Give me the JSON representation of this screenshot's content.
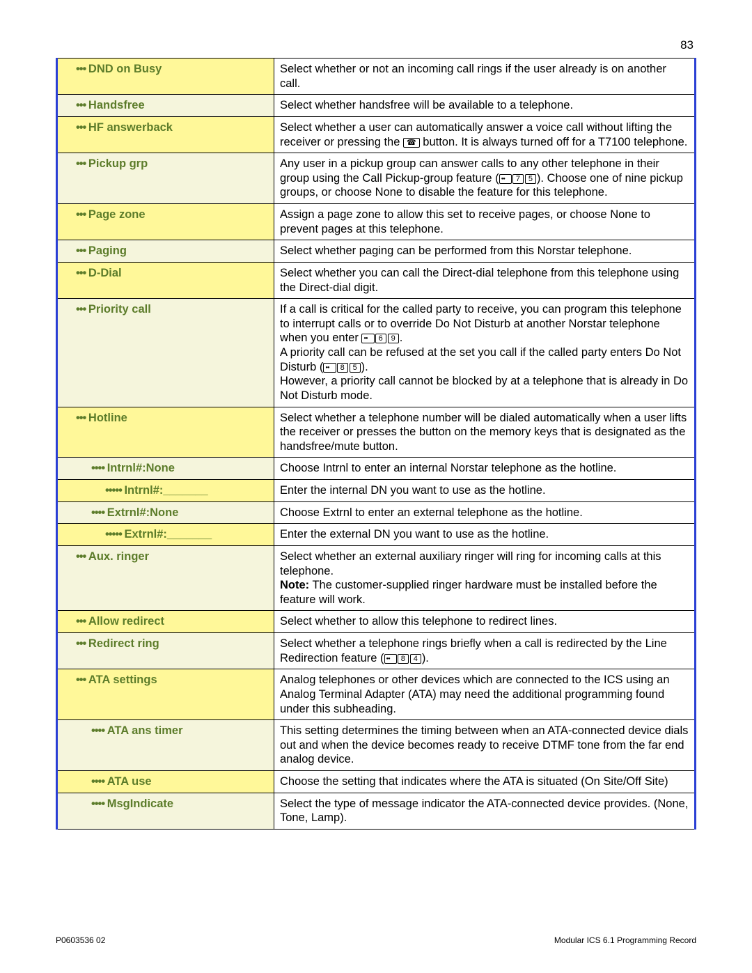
{
  "page_number": "83",
  "footer_left": "P0603536  02",
  "footer_right": "Modular ICS 6.1 Programming Record",
  "colors": {
    "label_text": "#5c7c2a",
    "highlight_bg": "#fff899",
    "normal_bg": "#f5f5dc",
    "blue_border": "#2a3fd4",
    "black": "#000000",
    "white": "#ffffff"
  },
  "rows": [
    {
      "group": "a",
      "pos": "top",
      "hl": true,
      "ind": 3,
      "bullets": "•••",
      "label": "DND on Busy",
      "desc": "Select whether or not an incoming call rings if the user already is on another call."
    },
    {
      "group": "a",
      "pos": "mid",
      "hl": false,
      "ind": 3,
      "bullets": "•••",
      "label": "Handsfree",
      "desc": "Select whether handsfree will be available to a telephone."
    },
    {
      "group": "a",
      "pos": "mid",
      "hl": true,
      "ind": 3,
      "bullets": "•••",
      "label": "HF answerback",
      "desc_html": "Select whether a user can automatically answer a voice call without lifting the receiver or pressing the <span class='handset-key'>&#9742;</span> button. It is always turned off for a T7100 telephone."
    },
    {
      "group": "a",
      "pos": "mid",
      "hl": false,
      "ind": 3,
      "bullets": "•••",
      "label": "Pickup grp",
      "desc_html": "Any user in a pickup group can answer calls to any other telephone in their group using the Call Pickup-group feature (<span class='feature-key'>&nbsp;</span><span class='numkey'>7</span><span class='numkey'>5</span>). Choose one of nine pickup groups, or choose None to disable the feature for this telephone."
    },
    {
      "group": "a",
      "pos": "mid",
      "hl": true,
      "ind": 3,
      "bullets": "•••",
      "label": "Page zone",
      "desc": "Assign a page zone to allow this set to receive pages, or choose None to prevent pages at this telephone."
    },
    {
      "group": "a",
      "pos": "mid",
      "hl": false,
      "ind": 3,
      "bullets": "•••",
      "label": "Paging",
      "desc": "Select whether paging can be performed from this Norstar telephone."
    },
    {
      "group": "a",
      "pos": "mid",
      "hl": true,
      "ind": 3,
      "bullets": "•••",
      "label": "D-Dial",
      "desc": "Select whether you can call the Direct-dial telephone from this telephone using the Direct-dial digit."
    },
    {
      "group": "a",
      "pos": "bottom",
      "hl": false,
      "ind": 3,
      "bullets": "•••",
      "label": "Priority call",
      "desc_html": "If a call is critical for the called party to receive, you can program this telephone to interrupt calls or to override Do Not Disturb at another Norstar telephone when you enter <span class='feature-key'>&nbsp;</span><span class='numkey'>6</span><span class='numkey'>9</span>.<br>A priority call can be refused at the set you call if the called party enters Do Not Disturb (<span class='feature-key'>&nbsp;</span><span class='numkey'>8</span><span class='numkey'>5</span>).<br>However, a priority call cannot be blocked by at a telephone that is already in Do Not Disturb mode."
    },
    {
      "group": "b",
      "pos": "top",
      "hl": true,
      "ind": 3,
      "bullets": "•••",
      "label": "Hotline",
      "desc": "Select whether a telephone number will be dialed automatically when a user lifts the receiver or presses the button on the memory keys that is designated as the handsfree/mute button."
    },
    {
      "group": "b",
      "pos": "mid",
      "hl": false,
      "ind": 4,
      "bullets": "••••",
      "label": "Intrnl#:None",
      "desc": "Choose Intrnl to enter an internal Norstar telephone as the hotline."
    },
    {
      "group": "b",
      "pos": "mid",
      "hl": true,
      "ind": 5,
      "bullets": "•••••",
      "label": "Intrnl#:_______",
      "desc": "Enter the internal DN you want to use as the hotline."
    },
    {
      "group": "b",
      "pos": "mid",
      "hl": false,
      "ind": 4,
      "bullets": "••••",
      "label": "Extrnl#:None",
      "desc": "Choose Extrnl to enter an external telephone as the hotline."
    },
    {
      "group": "b",
      "pos": "bottom",
      "hl": true,
      "ind": 5,
      "bullets": "•••••",
      "label": "Extrnl#:_______",
      "desc": "Enter the external DN you want to use as the hotline."
    },
    {
      "group": "c",
      "pos": "top",
      "hl": false,
      "ind": 3,
      "bullets": "•••",
      "label": "Aux. ringer",
      "desc_html": "Select whether an external auxiliary ringer will ring for incoming calls at this telephone.<br><span class='note-bold'>Note:</span> The customer-supplied ringer hardware must be installed before the feature will work."
    },
    {
      "group": "c",
      "pos": "mid",
      "hl": true,
      "ind": 3,
      "bullets": "•••",
      "label": "Allow redirect",
      "desc": "Select whether to allow this telephone to redirect lines."
    },
    {
      "group": "c",
      "pos": "bottom",
      "hl": false,
      "ind": 3,
      "bullets": "•••",
      "label": "Redirect ring",
      "desc_html": "Select whether a telephone rings briefly when a call is redirected by the Line Redirection feature (<span class='feature-key'>&nbsp;</span><span class='numkey'>8</span><span class='numkey'>4</span>)."
    },
    {
      "group": "d",
      "pos": "top",
      "hl": true,
      "ind": 3,
      "bullets": "•••",
      "label": "ATA settings",
      "desc": "Analog telephones or other devices which are connected to the ICS using an Analog Terminal Adapter (ATA) may need the additional programming found under this subheading."
    },
    {
      "group": "d",
      "pos": "mid",
      "hl": false,
      "ind": 4,
      "bullets": "••••",
      "label": "ATA ans timer",
      "desc": "This setting determines the timing between when an ATA-connected device dials out and when the device becomes ready to receive DTMF tone from the far end analog device."
    },
    {
      "group": "d",
      "pos": "mid",
      "hl": true,
      "ind": 4,
      "bullets": "••••",
      "label": "ATA use",
      "desc": "Choose the setting that indicates where the ATA is situated (On Site/Off Site)"
    },
    {
      "group": "d",
      "pos": "bottom",
      "hl": false,
      "ind": 4,
      "bullets": "••••",
      "label": "MsgIndicate",
      "desc": "Select the type of message indicator the ATA-connected device provides. (None, Tone, Lamp)."
    }
  ]
}
